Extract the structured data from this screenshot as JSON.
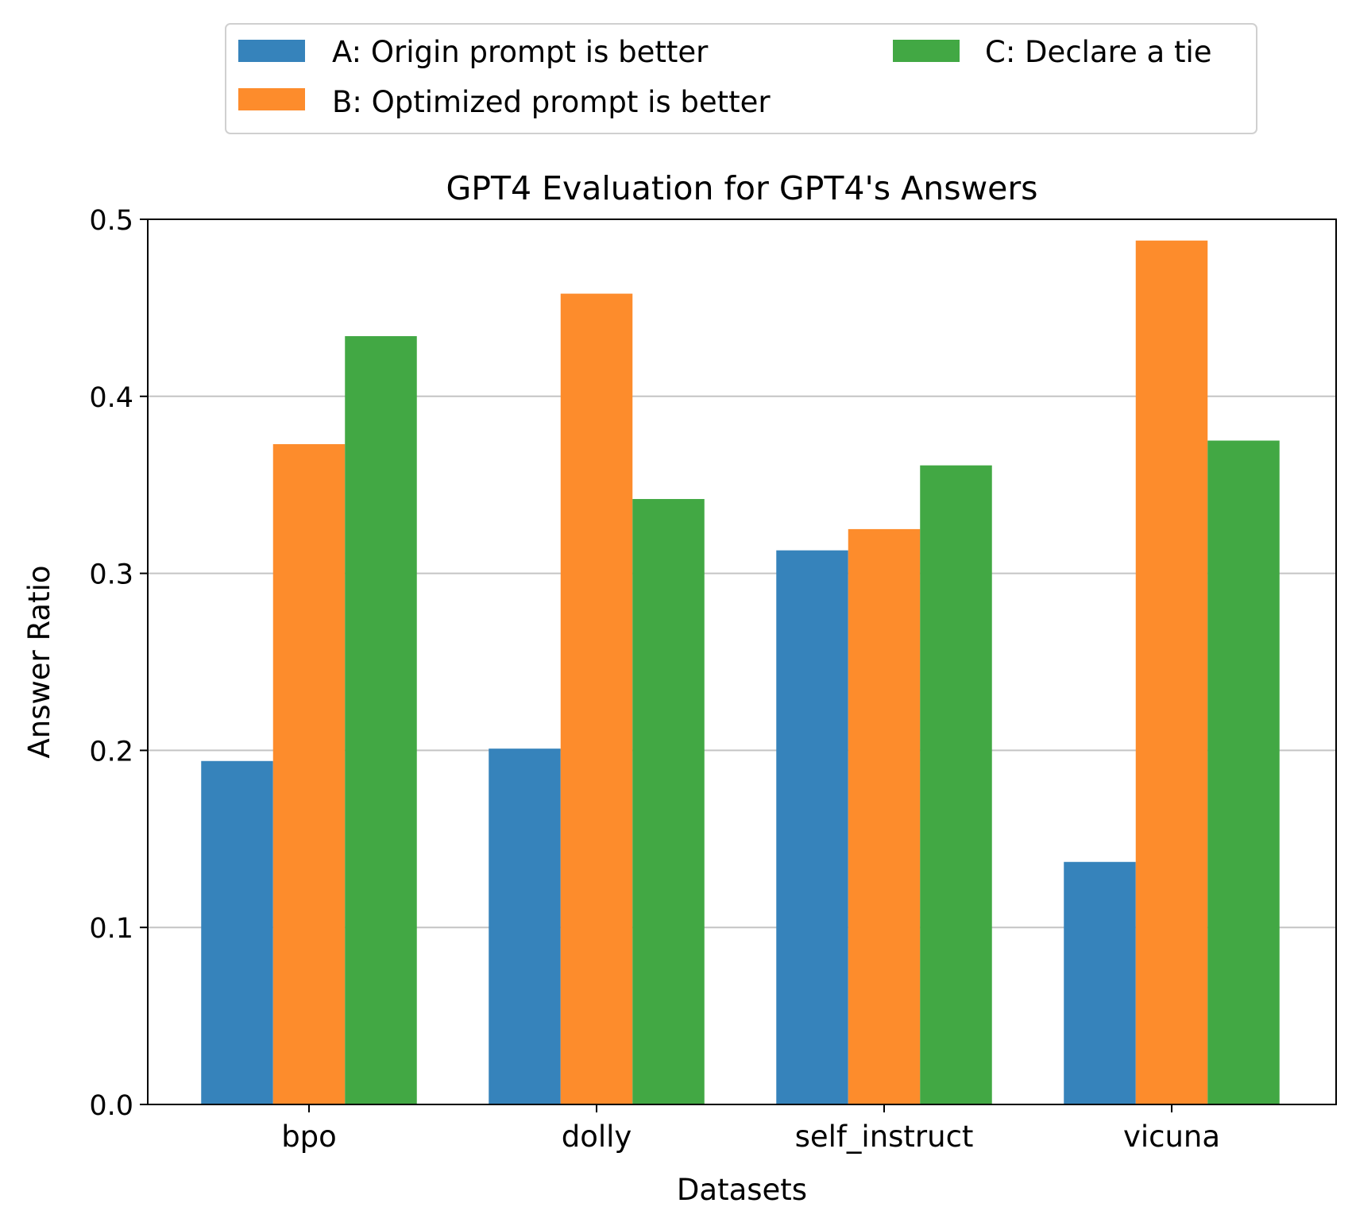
{
  "chart_data": {
    "type": "bar",
    "title": "GPT4 Evaluation for GPT4's Answers",
    "xlabel": "Datasets",
    "ylabel": "Answer Ratio",
    "ylim": [
      0,
      0.5
    ],
    "yticks": [
      "0.0",
      "0.1",
      "0.2",
      "0.3",
      "0.4",
      "0.5"
    ],
    "categories": [
      "bpo",
      "dolly",
      "self_instruct",
      "vicuna"
    ],
    "series": [
      {
        "name": "A: Origin prompt is better",
        "color": "#3683bb",
        "values": [
          0.194,
          0.201,
          0.313,
          0.137
        ]
      },
      {
        "name": "B: Optimized prompt is better",
        "color": "#fd8c2c",
        "values": [
          0.373,
          0.458,
          0.325,
          0.488
        ]
      },
      {
        "name": "C: Declare a tie",
        "color": "#42a844",
        "values": [
          0.434,
          0.342,
          0.361,
          0.375
        ]
      }
    ],
    "grid": "horizontal",
    "legend_position": "above plot"
  }
}
